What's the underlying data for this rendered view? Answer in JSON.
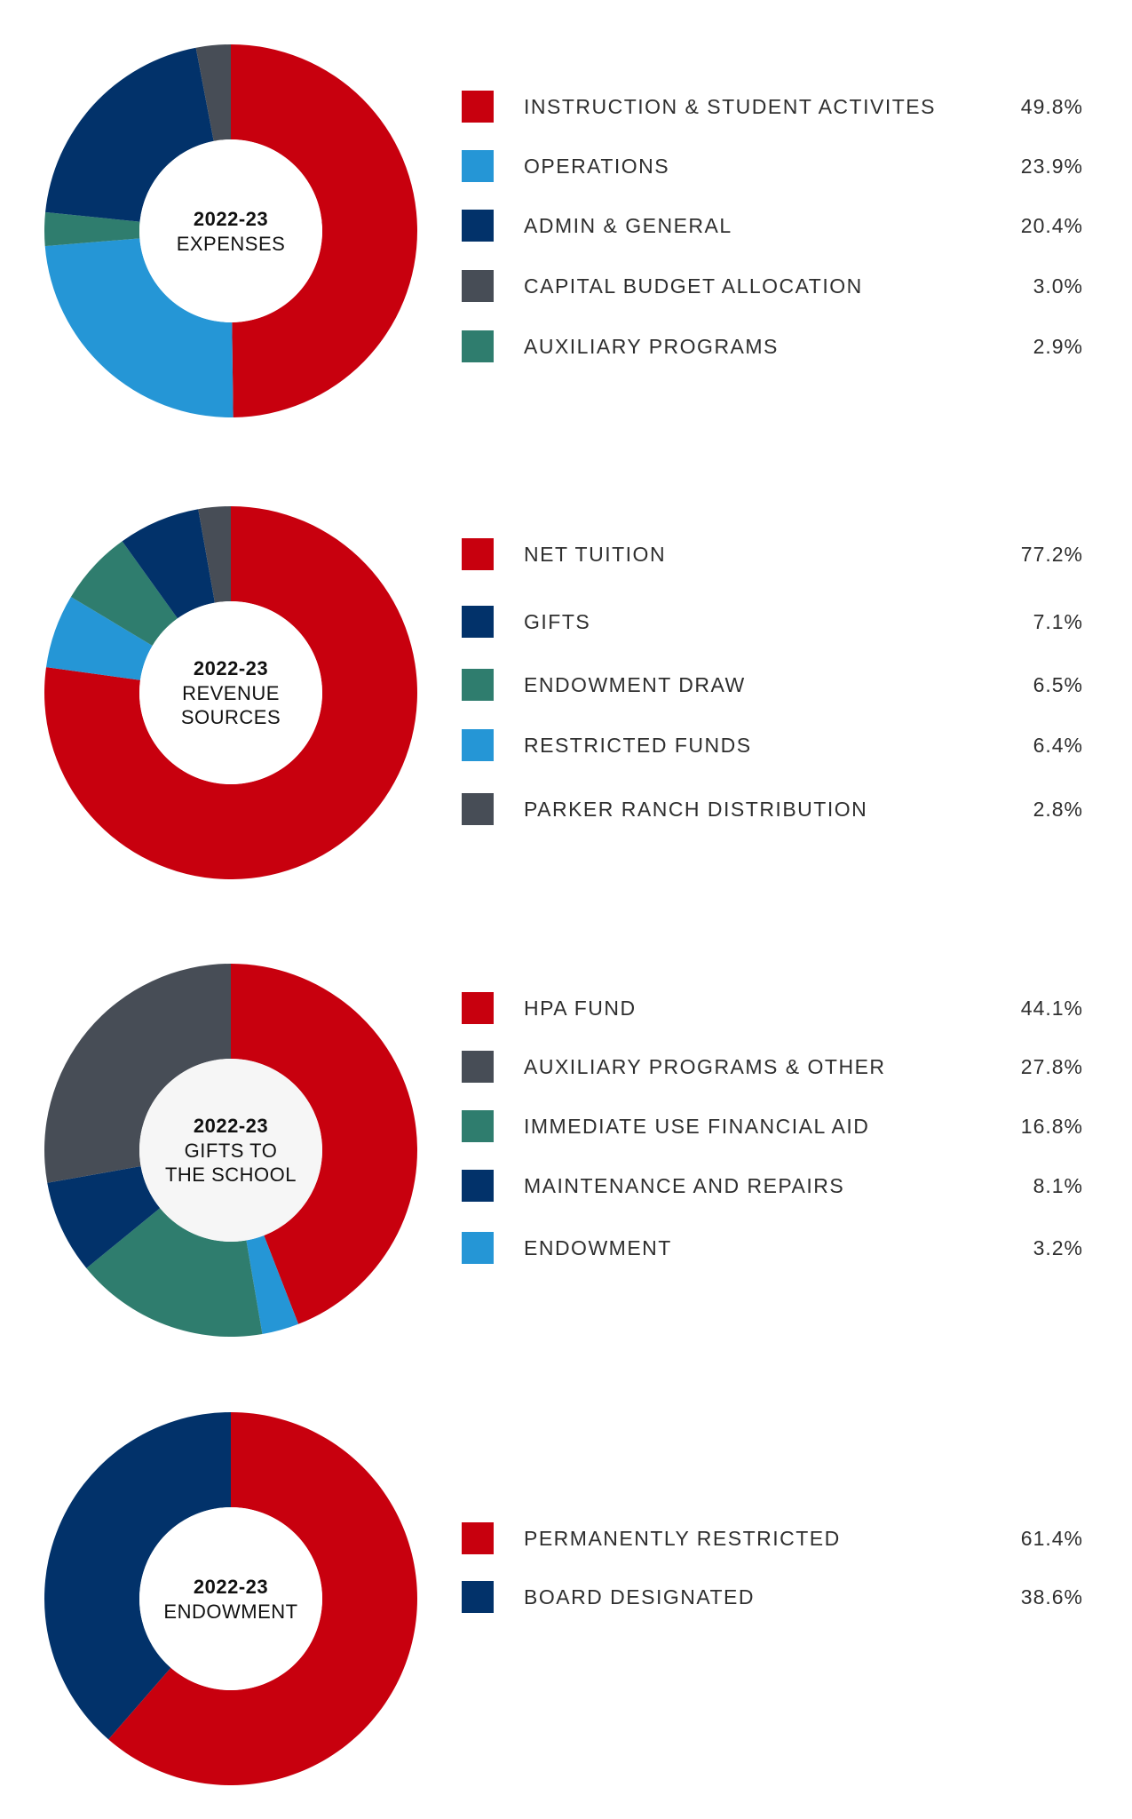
{
  "chart_data": [
    {
      "type": "pie",
      "title_year": "2022-23",
      "title_sub": [
        "EXPENSES"
      ],
      "categories": [
        "INSTRUCTION & STUDENT ACTIVITES",
        "OPERATIONS",
        "ADMIN & GENERAL",
        "CAPITAL BUDGET ALLOCATION",
        "AUXILIARY PROGRAMS"
      ],
      "values": [
        49.8,
        23.9,
        20.4,
        3.0,
        2.9
      ],
      "labels": [
        "49.8%",
        "23.9%",
        "20.4%",
        "3.0%",
        "2.9%"
      ],
      "colors": [
        "#c8000e",
        "#2596d6",
        "#02326a",
        "#474d56",
        "#2f7d6e"
      ],
      "slice_order": [
        0,
        1,
        4,
        2,
        3
      ]
    },
    {
      "type": "pie",
      "title_year": "2022-23",
      "title_sub": [
        "REVENUE",
        "SOURCES"
      ],
      "categories": [
        "NET TUITION",
        "GIFTS",
        "ENDOWMENT DRAW",
        "RESTRICTED FUNDS",
        "PARKER RANCH DISTRIBUTION"
      ],
      "values": [
        77.2,
        7.1,
        6.5,
        6.4,
        2.8
      ],
      "labels": [
        "77.2%",
        "7.1%",
        "6.5%",
        "6.4%",
        "2.8%"
      ],
      "colors": [
        "#c8000e",
        "#02326a",
        "#2f7d6e",
        "#2596d6",
        "#474d56"
      ],
      "slice_order": [
        0,
        3,
        2,
        1,
        4
      ]
    },
    {
      "type": "pie",
      "title_year": "2022-23",
      "title_sub": [
        "GIFTS TO",
        "THE SCHOOL"
      ],
      "categories": [
        "HPA FUND",
        "AUXILIARY PROGRAMS & OTHER",
        "IMMEDIATE USE FINANCIAL AID",
        "MAINTENANCE AND REPAIRS",
        "ENDOWMENT"
      ],
      "values": [
        44.1,
        27.8,
        16.8,
        8.1,
        3.2
      ],
      "labels": [
        "44.1%",
        "27.8%",
        "16.8%",
        "8.1%",
        "3.2%"
      ],
      "colors": [
        "#c8000e",
        "#474d56",
        "#2f7d6e",
        "#02326a",
        "#2596d6"
      ],
      "slice_order": [
        0,
        4,
        2,
        3,
        1
      ],
      "center_fill": "#f6f6f6"
    },
    {
      "type": "pie",
      "title_year": "2022-23",
      "title_sub": [
        "ENDOWMENT"
      ],
      "categories": [
        "PERMANENTLY RESTRICTED",
        "BOARD DESIGNATED"
      ],
      "values": [
        61.4,
        38.6
      ],
      "labels": [
        "61.4%",
        "38.6%"
      ],
      "colors": [
        "#c8000e",
        "#02326a"
      ],
      "slice_order": [
        0,
        1
      ]
    }
  ]
}
